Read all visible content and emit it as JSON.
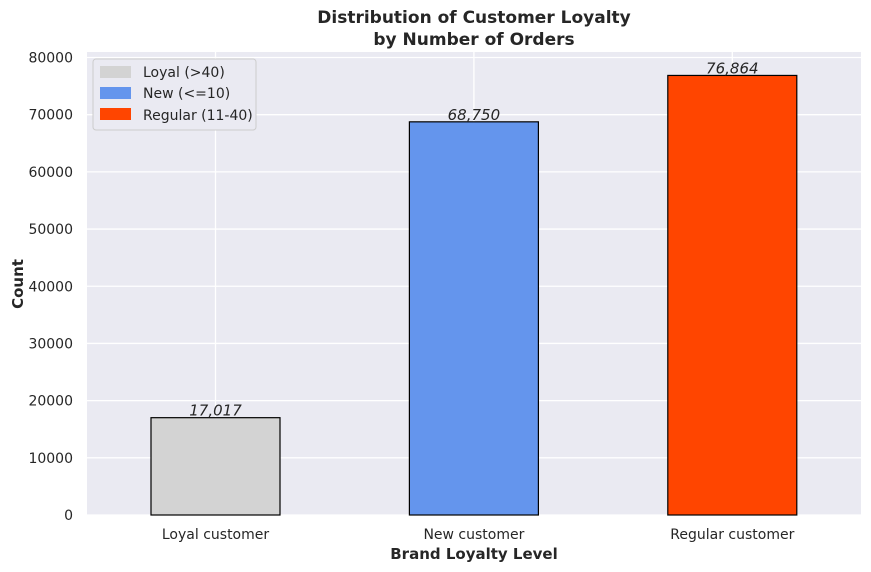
{
  "chart_data": {
    "type": "bar",
    "title": "Distribution of Customer Loyalty",
    "subtitle": "by Number of Orders",
    "xlabel": "Brand Loyalty Level",
    "ylabel": "Count",
    "categories": [
      "Loyal customer",
      "New customer",
      "Regular customer"
    ],
    "values": [
      17017,
      68750,
      76864
    ],
    "value_labels": [
      "17,017",
      "68,750",
      "76,864"
    ],
    "colors": [
      "#d3d3d3",
      "#6495ed",
      "#ff4500"
    ],
    "ylim": [
      0,
      80000
    ],
    "yticks": [
      0,
      10000,
      20000,
      30000,
      40000,
      50000,
      60000,
      70000,
      80000
    ],
    "ytick_labels": [
      "0",
      "10000",
      "20000",
      "30000",
      "40000",
      "50000",
      "60000",
      "70000",
      "80000"
    ],
    "grid": true,
    "background": "#eaeaf2",
    "legend": {
      "placement": "top-left",
      "entries": [
        {
          "label": "Loyal (>40)",
          "color": "#d3d3d3"
        },
        {
          "label": "New (<=10)",
          "color": "#6495ed"
        },
        {
          "label": "Regular (11-40)",
          "color": "#ff4500"
        }
      ]
    }
  }
}
